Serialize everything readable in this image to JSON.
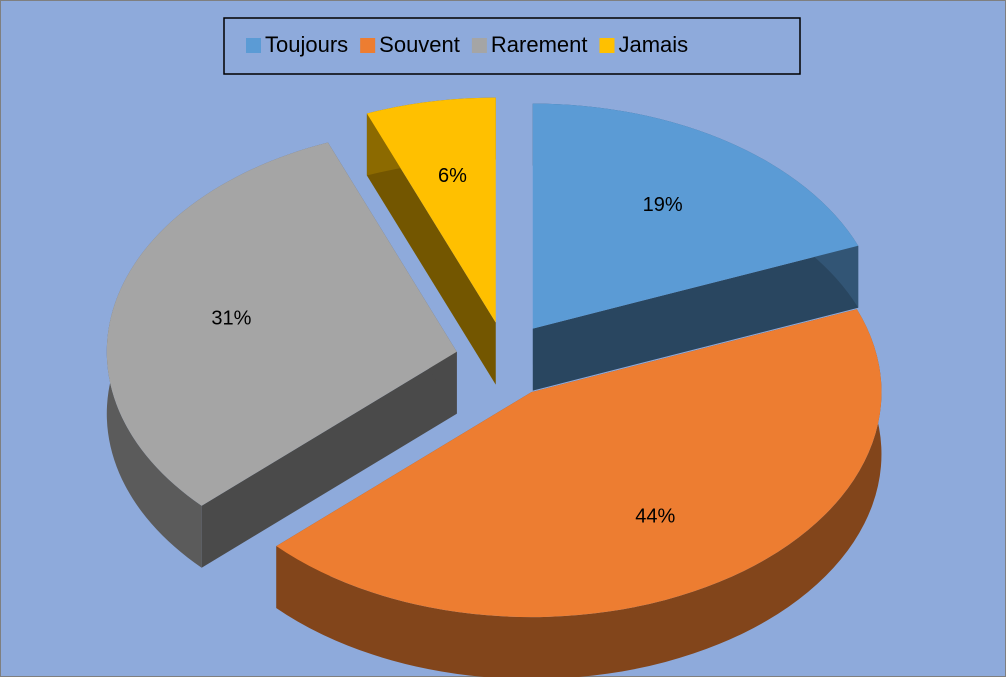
{
  "chart_data": {
    "type": "pie3d",
    "categories": [
      "Toujours",
      "Souvent",
      "Rarement",
      "Jamais"
    ],
    "values": [
      19,
      44,
      31,
      6
    ],
    "value_labels": [
      "19%",
      "44%",
      "31%",
      "6%"
    ],
    "colors": [
      "#5b9bd5",
      "#ed7d31",
      "#a5a5a5",
      "#ffc000"
    ],
    "legend": "top"
  }
}
